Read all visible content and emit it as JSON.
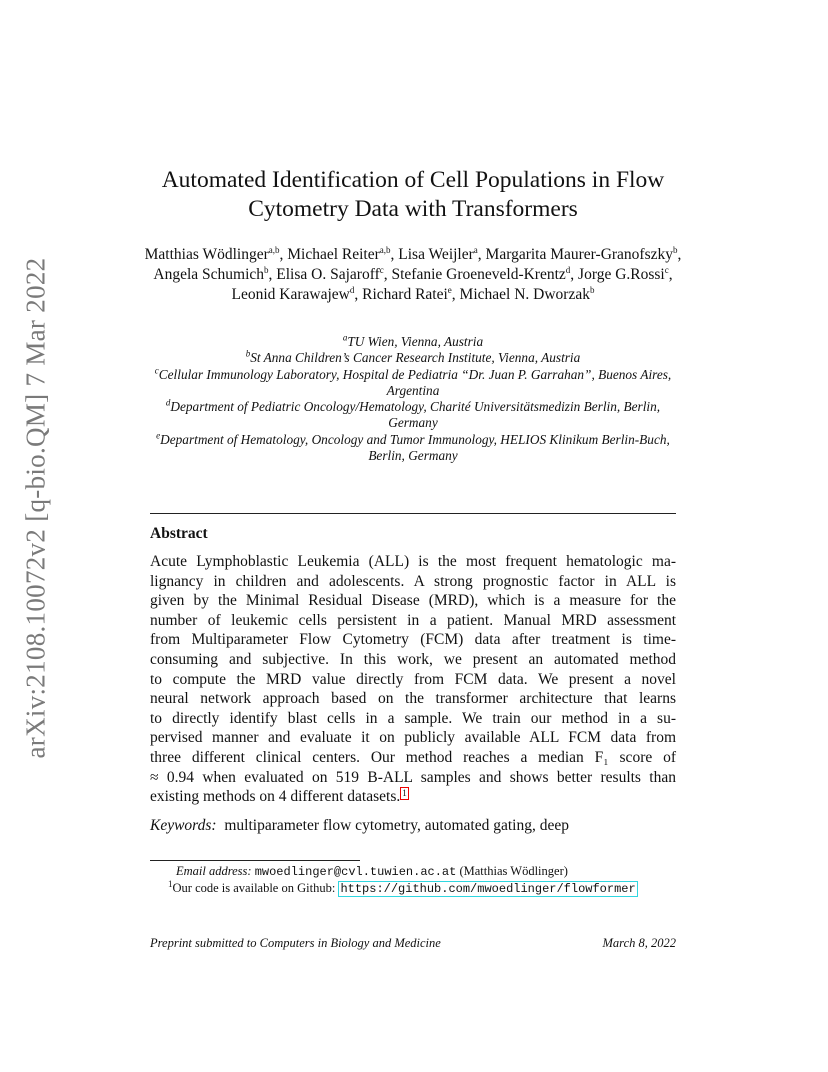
{
  "sidebar_id": "arXiv:2108.10072v2  [q-bio.QM]  7 Mar 2022",
  "title_lines": [
    "Automated Identification of Cell Populations in Flow",
    "Cytometry Data with Transformers"
  ],
  "authors": [
    {
      "name": "Matthias Wödlinger",
      "aff": "a,b",
      "sep": ", "
    },
    {
      "name": "Michael Reiter",
      "aff": "a,b",
      "sep": ", "
    },
    {
      "name": "Lisa Weijler",
      "aff": "a",
      "sep": ", "
    },
    {
      "name": "Margarita Maurer-Granofszky",
      "aff": "b",
      "sep": ", "
    },
    {
      "name": "Angela Schumich",
      "aff": "b",
      "sep": ", "
    },
    {
      "name": "Elisa O. Sajaroff",
      "aff": "c",
      "sep": ", "
    },
    {
      "name": "Stefanie Groeneveld-Krentz",
      "aff": "d",
      "sep": ", "
    },
    {
      "name": "Jorge G.Rossi",
      "aff": "c",
      "sep": ", "
    },
    {
      "name": "Leonid Karawajew",
      "aff": "d",
      "sep": ", "
    },
    {
      "name": "Richard Ratei",
      "aff": "e",
      "sep": ", "
    },
    {
      "name": "Michael N. Dworzak",
      "aff": "b",
      "sep": ""
    }
  ],
  "affiliations": [
    {
      "key": "a",
      "text": "TU Wien, Vienna, Austria"
    },
    {
      "key": "b",
      "text": "St Anna Children’s Cancer Research Institute, Vienna, Austria"
    },
    {
      "key": "c",
      "text": "Cellular Immunology Laboratory, Hospital de Pediatria “Dr. Juan P. Garrahan”, Buenos Aires, Argentina"
    },
    {
      "key": "d",
      "text": "Department of Pediatric Oncology/Hematology, Charité Universitätsmedizin Berlin, Berlin, Germany"
    },
    {
      "key": "e",
      "text": "Department of Hematology, Oncology and Tumor Immunology, HELIOS Klinikum Berlin-Buch, Berlin, Germany"
    }
  ],
  "abstract": {
    "heading": "Abstract",
    "lines": [
      "Acute Lymphoblastic Leukemia (ALL) is the most frequent hematologic ma-",
      "lignancy in children and adolescents. A strong prognostic factor in ALL is",
      "given by the Minimal Residual Disease (MRD), which is a measure for the",
      "number of leukemic cells persistent in a patient. Manual MRD assessment",
      "from Multiparameter Flow Cytometry (FCM) data after treatment is time-",
      "consuming and subjective. In this work, we present an automated method",
      "to compute the MRD value directly from FCM data. We present a novel",
      "neural network approach based on the transformer architecture that learns",
      "to directly identify blast cells in a sample. We train our method in a su-",
      "pervised manner and evaluate it on publicly available ALL FCM data from",
      "three different clinical centers. Our method reaches a median F₁ score of",
      "≈ 0.94 when evaluated on 519 B-ALL samples and shows better results than",
      "existing methods on 4 different datasets."
    ],
    "footnote_ref": "1"
  },
  "keywords": {
    "label": "Keywords:",
    "text": "multiparameter flow cytometry, automated gating, deep"
  },
  "footnotes": {
    "email_label": "Email address:",
    "email": "mwoedlinger@cvl.tuwien.ac.at",
    "email_owner": "(Matthias Wödlinger)",
    "code_mark": "1",
    "code_text": "Our code is available on Github:",
    "code_url": "https://github.com/mwoedlinger/flowformer"
  },
  "footer": {
    "left": "Preprint submitted to Computers in Biology and Medicine",
    "right": "March 8, 2022"
  }
}
